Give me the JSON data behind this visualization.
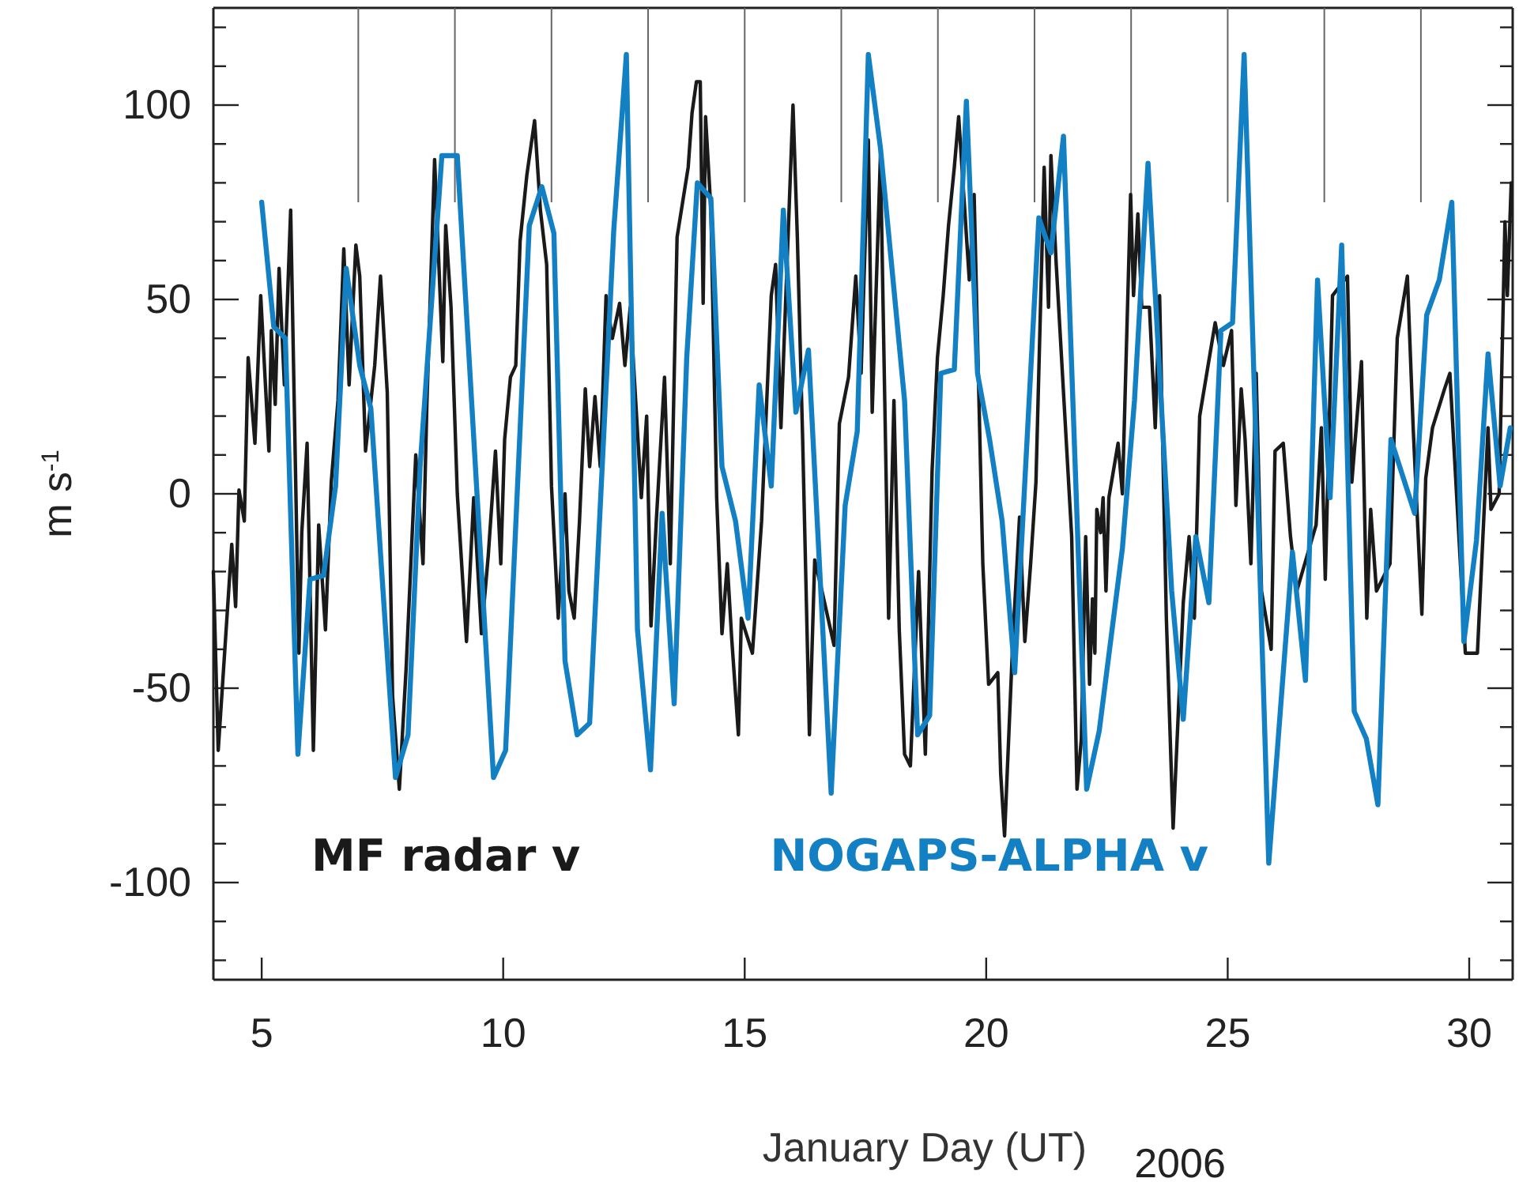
{
  "chart_data": {
    "type": "line",
    "xlabel": "January Day (UT)",
    "ylabel": "m s$^{-1}$",
    "annotations": [
      "2006"
    ],
    "xlim": [
      4,
      30.9
    ],
    "xticks": [
      5,
      10,
      15,
      20,
      25,
      30
    ],
    "ref_lines": [
      {
        "axis": "x",
        "value": 7
      },
      {
        "axis": "x",
        "value": 9
      },
      {
        "axis": "x",
        "value": 11
      },
      {
        "axis": "x",
        "value": 13
      },
      {
        "axis": "x",
        "value": 15
      },
      {
        "axis": "x",
        "value": 17
      },
      {
        "axis": "x",
        "value": 19
      },
      {
        "axis": "x",
        "value": 21
      },
      {
        "axis": "x",
        "value": 23
      },
      {
        "axis": "x",
        "value": 25
      },
      {
        "axis": "x",
        "value": 27
      },
      {
        "axis": "x",
        "value": 29
      }
    ],
    "ylim": [
      -125,
      125
    ],
    "yticks": [
      {
        "value": -120,
        "label": null
      },
      {
        "value": -110,
        "label": null
      },
      -100,
      {
        "value": -90,
        "label": null
      },
      {
        "value": -80,
        "label": null
      },
      {
        "value": -70,
        "label": null
      },
      {
        "value": -60,
        "label": null
      },
      -50,
      {
        "value": -40,
        "label": null
      },
      {
        "value": -30,
        "label": null
      },
      {
        "value": -20,
        "label": null
      },
      {
        "value": -10,
        "label": null
      },
      0,
      {
        "value": 10,
        "label": null
      },
      {
        "value": 20,
        "label": null
      },
      {
        "value": 30,
        "label": null
      },
      {
        "value": 40,
        "label": null
      },
      50,
      {
        "value": 60,
        "label": null
      },
      {
        "value": 70,
        "label": null
      },
      {
        "value": 80,
        "label": null
      },
      {
        "value": 90,
        "label": null
      },
      100,
      {
        "value": 110,
        "label": null
      },
      {
        "value": 120,
        "label": null
      }
    ],
    "grid": false,
    "legend": "bottom left",
    "line_style": "solid",
    "marker": "none",
    "series": [
      {
        "name": "MF radar v",
        "color": "#1a1a1a",
        "x": [
          4,
          4.1,
          4.38,
          4.46,
          4.53,
          4.64,
          4.72,
          4.86,
          4.98,
          5.15,
          5.2,
          5.28,
          5.36,
          5.47,
          5.6,
          5.77,
          5.83,
          5.94,
          6.07,
          6.18,
          6.32,
          6.44,
          6.58,
          6.7,
          6.81,
          6.95,
          7.03,
          7.15,
          7.34,
          7.46,
          7.6,
          7.71,
          7.85,
          7.99,
          8.19,
          8.34,
          8.42,
          8.58,
          8.75,
          8.81,
          8.92,
          9.05,
          9.24,
          9.39,
          9.55,
          9.69,
          9.84,
          9.95,
          10.03,
          10.15,
          10.26,
          10.35,
          10.49,
          10.65,
          10.77,
          10.9,
          11,
          11.14,
          11.28,
          11.36,
          11.47,
          11.58,
          11.7,
          11.79,
          11.9,
          12.01,
          12.13,
          12.26,
          12.41,
          12.52,
          12.63,
          12.86,
          12.97,
          13.06,
          13.17,
          13.34,
          13.46,
          13.6,
          13.83,
          13.91,
          14,
          14.08,
          14.14,
          14.19,
          14.3,
          14.42,
          14.53,
          14.64,
          14.73,
          14.87,
          14.93,
          15.16,
          15.35,
          15.55,
          15.64,
          15.75,
          16,
          16.09,
          16.2,
          16.34,
          16.45,
          16.6,
          16.85,
          16.96,
          17.15,
          17.3,
          17.41,
          17.56,
          17.64,
          17.81,
          17.98,
          18.09,
          18.2,
          18.31,
          18.43,
          18.6,
          18.74,
          18.88,
          18.99,
          19.11,
          19.22,
          19.34,
          19.43,
          19.65,
          19.75,
          19.82,
          19.93,
          20.05,
          20.24,
          20.3,
          20.38,
          20.55,
          20.69,
          20.8,
          20.92,
          21.03,
          21.2,
          21.29,
          21.34,
          21.45,
          21.77,
          21.88,
          21.97,
          22.06,
          22.14,
          22.2,
          22.25,
          22.29,
          22.37,
          22.42,
          22.48,
          22.54,
          22.73,
          22.82,
          22.99,
          23.05,
          23.14,
          23.22,
          23.38,
          23.5,
          23.59,
          23.73,
          23.87,
          24.08,
          24.2,
          24.31,
          24.42,
          24.74,
          24.91,
          25.08,
          25.17,
          25.28,
          25.36,
          25.48,
          25.59,
          25.7,
          25.9,
          25.98,
          26.15,
          26.3,
          26.43,
          26.83,
          26.94,
          27.02,
          27.17,
          27.48,
          27.57,
          27.77,
          27.88,
          27.96,
          28.08,
          28.36,
          28.51,
          28.72,
          28.84,
          29.02,
          29.1,
          29.24,
          29.49,
          29.6,
          29.92,
          30.17,
          30.39,
          30.45,
          30.62,
          30.74,
          30.79,
          30.87
        ],
        "values": [
          -20,
          -66,
          -13,
          -29,
          1,
          -7,
          35,
          13,
          51,
          11,
          42,
          23,
          58,
          28,
          73,
          -41,
          -10,
          13,
          -66,
          -8,
          -35,
          3,
          24,
          63,
          28,
          64,
          56,
          11,
          33,
          56,
          26,
          -52,
          -76,
          -45,
          10,
          -18,
          23,
          86,
          34,
          69,
          48,
          0,
          -38,
          -1,
          -36,
          -16,
          11,
          -18,
          14,
          30,
          33,
          65,
          82,
          96,
          73,
          59,
          2,
          -32,
          0,
          -25,
          -32,
          -7,
          27,
          7,
          25,
          7,
          51,
          40,
          49,
          33,
          48,
          -1,
          20,
          -34,
          -7,
          30,
          -18,
          66,
          84,
          98,
          106,
          106,
          49,
          97,
          73,
          -1,
          -36,
          -18,
          -37,
          -62,
          -32,
          -41,
          -7,
          51,
          59,
          17,
          100,
          66,
          14,
          -62,
          -17,
          -25,
          -39,
          18,
          30,
          56,
          31,
          91,
          21,
          87,
          -32,
          24,
          -35,
          -67,
          -70,
          -20,
          -67,
          6,
          35,
          51,
          69,
          84,
          97,
          55,
          77,
          40,
          -18,
          -49,
          -46,
          -72,
          -88,
          -38,
          -6,
          -38,
          -18,
          3,
          84,
          48,
          87,
          59,
          -11,
          -76,
          -63,
          -11,
          -49,
          -27,
          -41,
          -4,
          -10,
          -1,
          -25,
          -1,
          13,
          0,
          77,
          51,
          72,
          48,
          48,
          17,
          51,
          -32,
          -86,
          -28,
          -11,
          -32,
          20,
          44,
          33,
          42,
          -3,
          27,
          14,
          -18,
          31,
          -25,
          -40,
          11,
          13,
          -11,
          -25,
          -8,
          17,
          -22,
          51,
          56,
          3,
          34,
          -32,
          -4,
          -25,
          -18,
          40,
          56,
          17,
          -31,
          4,
          17,
          27,
          31,
          -41,
          -41,
          17,
          -4,
          0,
          70,
          51,
          80
        ]
      },
      {
        "name": "NOGAPS-ALPHA v",
        "color": "#1380c4",
        "x": [
          5,
          5.25,
          5.49,
          5.75,
          6,
          6.28,
          6.53,
          6.75,
          7.03,
          7.26,
          7.77,
          8.03,
          8.28,
          8.73,
          9.05,
          9.8,
          10.05,
          10.54,
          10.8,
          11.05,
          11.28,
          11.53,
          11.79,
          12.29,
          12.55,
          12.78,
          13.05,
          13.29,
          13.54,
          13.8,
          14.02,
          14.3,
          14.53,
          14.81,
          15.07,
          15.3,
          15.55,
          15.8,
          16.06,
          16.32,
          16.79,
          17.08,
          17.33,
          17.56,
          17.81,
          18.31,
          18.58,
          18.83,
          19.06,
          19.34,
          19.59,
          19.82,
          20.07,
          20.33,
          20.59,
          21.09,
          21.34,
          21.6,
          22.08,
          22.34,
          22.82,
          23.07,
          23.35,
          23.84,
          24.08,
          24.34,
          24.61,
          24.86,
          25.1,
          25.34,
          25.85,
          26.34,
          26.61,
          26.86,
          27.12,
          27.36,
          27.62,
          27.87,
          28.11,
          28.38,
          28.87,
          29.12,
          29.38,
          29.64,
          29.89,
          30.15,
          30.39,
          30.64,
          30.85
        ],
        "values": [
          75,
          43,
          40,
          -67,
          -22,
          -21,
          2,
          58,
          33,
          22,
          -73,
          -62,
          7,
          87,
          87,
          -73,
          -66,
          69,
          79,
          67,
          -43,
          -62,
          -59,
          68,
          113,
          -35,
          -71,
          -5,
          -54,
          35,
          80,
          76,
          7,
          -7,
          -32,
          28,
          2,
          73,
          21,
          37,
          -77,
          -3,
          16,
          113,
          89,
          24,
          -62,
          -57,
          31,
          32,
          101,
          31,
          14,
          -7,
          -46,
          71,
          62,
          92,
          -76,
          -61,
          -14,
          24,
          85,
          -25,
          -58,
          -11,
          -28,
          42,
          44,
          113,
          -95,
          -15,
          -48,
          55,
          -1,
          64,
          -56,
          -63,
          -80,
          14,
          -5,
          46,
          55,
          75,
          -38,
          -12,
          36,
          2,
          17
        ]
      }
    ]
  }
}
